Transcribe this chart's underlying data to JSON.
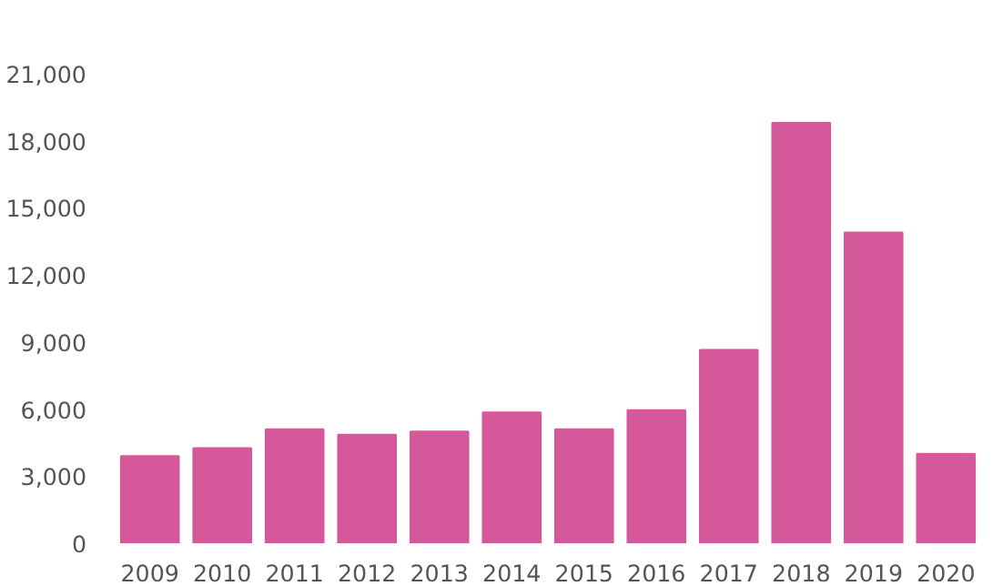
{
  "chart_data": {
    "type": "bar",
    "categories": [
      "2009",
      "2010",
      "2011",
      "2012",
      "2013",
      "2014",
      "2015",
      "2016",
      "2017",
      "2018",
      "2019",
      "2020"
    ],
    "values": [
      3900,
      4250,
      5100,
      4850,
      5000,
      5850,
      5100,
      5950,
      8650,
      18800,
      13900,
      4000
    ],
    "color": "#d5589a",
    "ylim": [
      0,
      21000
    ],
    "yticks": [
      {
        "value": 0,
        "label": "0"
      },
      {
        "value": 3000,
        "label": "3,000"
      },
      {
        "value": 6000,
        "label": "6,000"
      },
      {
        "value": 9000,
        "label": "9,000"
      },
      {
        "value": 12000,
        "label": "12,000"
      },
      {
        "value": 15000,
        "label": "15,000"
      },
      {
        "value": 18000,
        "label": "18,000"
      },
      {
        "value": 21000,
        "label": "21,000"
      }
    ],
    "grid": false
  }
}
